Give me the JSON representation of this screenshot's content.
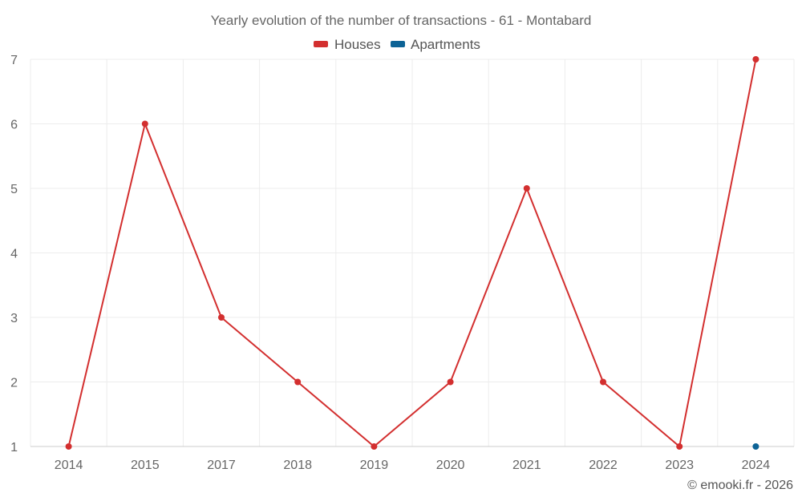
{
  "chart_data": {
    "type": "line",
    "title": "Yearly evolution of the number of transactions - 61 - Montabard",
    "categories": [
      "2014",
      "2015",
      "2017",
      "2018",
      "2019",
      "2020",
      "2021",
      "2022",
      "2023",
      "2024"
    ],
    "series": [
      {
        "name": "Houses",
        "color": "#d32f2f",
        "values": [
          1,
          6,
          3,
          2,
          1,
          2,
          5,
          2,
          1,
          7
        ]
      },
      {
        "name": "Apartments",
        "color": "#0d6396",
        "values": [
          null,
          null,
          null,
          null,
          null,
          null,
          null,
          null,
          null,
          1
        ]
      }
    ],
    "y_ticks": [
      "1",
      "2",
      "3",
      "4",
      "5",
      "6",
      "7"
    ],
    "ylim": [
      1,
      7
    ],
    "xlabel": "",
    "ylabel": "",
    "grid": true,
    "legend_position": "top-center"
  },
  "credit": "© emooki.fr - 2026"
}
